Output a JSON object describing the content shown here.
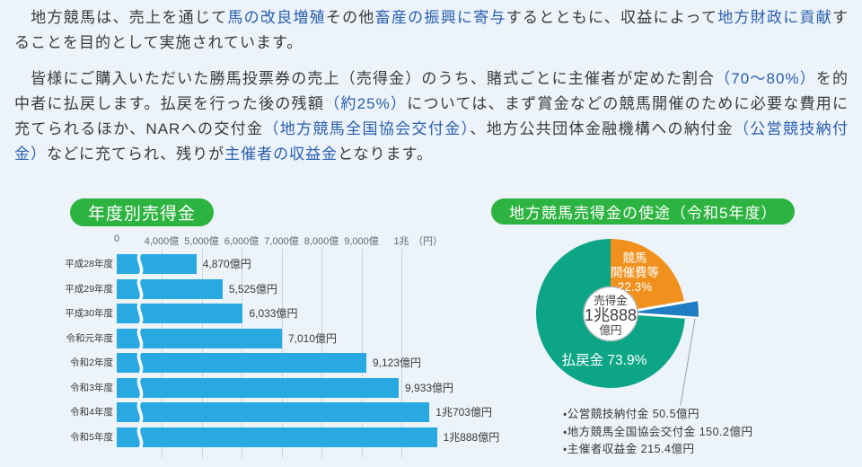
{
  "colors": {
    "bg": "#ecf3f9",
    "text": "#3a3a3a",
    "link_blue": "#2a5fae",
    "badge": "#2db340",
    "bar": "#29a9e1",
    "grid": "#ccd6de",
    "tick": "#5f6b76",
    "pie_green": "#0ca687",
    "pie_orange": "#f0911e",
    "pie_blue": "#1e7dc3",
    "leader": "#9aa0a6",
    "center_circle_border": "#b7bcc0"
  },
  "intro": {
    "paragraph1": {
      "segments": [
        {
          "t": "　地方競馬は、売上を通じて",
          "c": "n"
        },
        {
          "t": "馬の改良増殖",
          "c": "b"
        },
        {
          "t": "その他",
          "c": "n"
        },
        {
          "t": "畜産の振興に寄与",
          "c": "b"
        },
        {
          "t": "するとともに、収益によって",
          "c": "n"
        },
        {
          "t": "地方財政に貢献",
          "c": "b"
        },
        {
          "t": "することを目的として実施されています。",
          "c": "n"
        }
      ]
    },
    "paragraph2": {
      "segments": [
        {
          "t": "　皆様にご購入いただいた勝馬投票券の売上（売得金）のうち、賭式ごとに主催者が定めた割合",
          "c": "n"
        },
        {
          "t": "（70〜80%）",
          "c": "b"
        },
        {
          "t": "を的中者に払戻します。払戻を行った後の残額",
          "c": "n"
        },
        {
          "t": "（約25%）",
          "c": "b"
        },
        {
          "t": "については、まず賞金などの競馬開催のために必要な費用に充てられるほか、NARへの交付金",
          "c": "n"
        },
        {
          "t": "（地方競馬全国協会交付金）",
          "c": "b"
        },
        {
          "t": "、地方公共団体金融機構への納付金",
          "c": "n"
        },
        {
          "t": "（公営競技納付金）",
          "c": "b"
        },
        {
          "t": "などに充てられ、残りが",
          "c": "n"
        },
        {
          "t": "主催者の収益金",
          "c": "b"
        },
        {
          "t": "となります。",
          "c": "n"
        }
      ]
    }
  },
  "chart_data": [
    {
      "type": "bar",
      "title": "年度別売得金",
      "orientation": "horizontal",
      "categories": [
        "平成28年度",
        "平成29年度",
        "平成30年度",
        "令和元年度",
        "令和2年度",
        "令和3年度",
        "令和4年度",
        "令和5年度"
      ],
      "values": [
        4870,
        5525,
        6033,
        7010,
        9123,
        9933,
        10703,
        10888
      ],
      "unit": "億円",
      "value_labels": [
        "4,870億円",
        "5,525億円",
        "6,033億円",
        "7,010億円",
        "9,123億円",
        "9,933億円",
        "1兆703億円",
        "1兆888億円"
      ],
      "x_ticks": [
        {
          "v": 0,
          "label": "0"
        },
        {
          "v": 4000,
          "label": "4,000億"
        },
        {
          "v": 5000,
          "label": "5,000億"
        },
        {
          "v": 6000,
          "label": "6,000億"
        },
        {
          "v": 7000,
          "label": "7,000億"
        },
        {
          "v": 8000,
          "label": "8,000億"
        },
        {
          "v": 9000,
          "label": "9,000億"
        },
        {
          "v": 10000,
          "label": "1兆"
        }
      ],
      "x_unit_label": "（円）",
      "axis_break_between": [
        0,
        4000
      ],
      "xlim": [
        0,
        11000
      ],
      "grid": true
    },
    {
      "type": "pie",
      "title": "地方競馬売得金の使途（令和5年度）",
      "slices": [
        {
          "name": "競馬開催費等",
          "pct": 22.3,
          "color_key": "pie_orange",
          "exploded": false,
          "label_lines": [
            "競馬",
            "開催費等",
            "22.3%"
          ]
        },
        {
          "name": "納付金・交付金・収益金",
          "pct": 3.8,
          "pct_estimated": true,
          "color_key": "pie_blue",
          "exploded": true
        },
        {
          "name": "払戻金",
          "pct": 73.9,
          "color_key": "pie_green",
          "exploded": false,
          "label": "払戻金 73.9%"
        }
      ],
      "center_label_lines": [
        "売得金",
        "1兆888",
        "億円"
      ],
      "callout_items": [
        "・公営競技納付金 50.5億円",
        "・地方競馬全国協会交付金 150.2億円",
        "・主催者収益金 215.4億円"
      ],
      "legend_position": "below-right"
    }
  ]
}
